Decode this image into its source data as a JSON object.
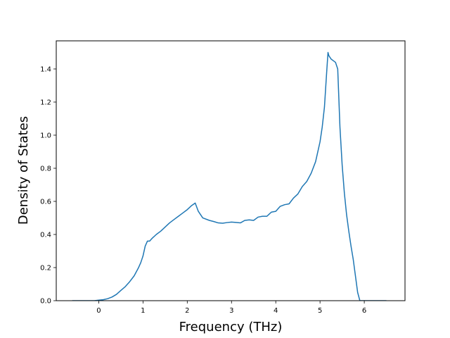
{
  "chart_data": {
    "type": "line",
    "title": "",
    "xlabel": "Frequency (THz)",
    "ylabel": "Density of States",
    "xlim": [
      -0.96,
      6.92
    ],
    "ylim": [
      0.0,
      1.57
    ],
    "xticks": [
      0,
      1,
      2,
      3,
      4,
      5,
      6
    ],
    "xtick_labels": [
      "0",
      "1",
      "2",
      "3",
      "4",
      "5",
      "6"
    ],
    "yticks": [
      0.0,
      0.2,
      0.4,
      0.6,
      0.8,
      1.0,
      1.2,
      1.4
    ],
    "ytick_labels": [
      "0.0",
      "0.2",
      "0.4",
      "0.6",
      "0.8",
      "1.0",
      "1.2",
      "1.4"
    ],
    "grid": false,
    "legend": "none",
    "line_color": "#1f77b4",
    "series": [
      {
        "x": [
          -0.6,
          -0.1,
          0.0,
          0.1,
          0.2,
          0.3,
          0.4,
          0.5,
          0.6,
          0.7,
          0.8,
          0.9,
          0.95,
          1.0,
          1.05,
          1.1,
          1.15,
          1.2,
          1.3,
          1.4,
          1.5,
          1.6,
          1.7,
          1.8,
          1.9,
          2.0,
          2.1,
          2.18,
          2.25,
          2.35,
          2.5,
          2.6,
          2.7,
          2.8,
          2.9,
          3.0,
          3.1,
          3.2,
          3.3,
          3.4,
          3.5,
          3.6,
          3.7,
          3.8,
          3.9,
          4.0,
          4.1,
          4.2,
          4.3,
          4.4,
          4.5,
          4.6,
          4.7,
          4.8,
          4.9,
          5.0,
          5.05,
          5.1,
          5.15,
          5.18,
          5.2,
          5.25,
          5.3,
          5.35,
          5.4,
          5.45,
          5.5,
          5.55,
          5.6,
          5.65,
          5.7,
          5.75,
          5.8,
          5.85,
          5.9,
          5.93,
          5.95,
          6.0,
          6.5
        ],
        "y": [
          0.0,
          0.0,
          0.003,
          0.006,
          0.012,
          0.022,
          0.038,
          0.062,
          0.085,
          0.115,
          0.15,
          0.2,
          0.23,
          0.27,
          0.33,
          0.36,
          0.36,
          0.375,
          0.4,
          0.42,
          0.445,
          0.47,
          0.49,
          0.51,
          0.53,
          0.55,
          0.575,
          0.59,
          0.54,
          0.5,
          0.485,
          0.478,
          0.47,
          0.468,
          0.472,
          0.475,
          0.473,
          0.47,
          0.485,
          0.488,
          0.485,
          0.505,
          0.51,
          0.51,
          0.535,
          0.54,
          0.57,
          0.58,
          0.585,
          0.62,
          0.645,
          0.69,
          0.72,
          0.77,
          0.84,
          0.96,
          1.05,
          1.17,
          1.38,
          1.5,
          1.48,
          1.46,
          1.45,
          1.44,
          1.4,
          1.05,
          0.82,
          0.65,
          0.52,
          0.42,
          0.33,
          0.25,
          0.15,
          0.05,
          0.0,
          0.0,
          0.0,
          0.0,
          0.0
        ]
      }
    ]
  }
}
